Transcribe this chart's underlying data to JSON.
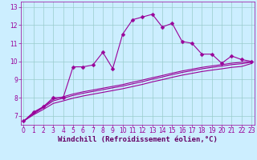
{
  "background_color": "#cceeff",
  "line_color": "#990099",
  "grid_color": "#99cccc",
  "xlabel": "Windchill (Refroidissement éolien,°C)",
  "xlabel_color": "#660066",
  "tick_color": "#990099",
  "x_ticks": [
    0,
    1,
    2,
    3,
    4,
    5,
    6,
    7,
    8,
    9,
    10,
    11,
    12,
    13,
    14,
    15,
    16,
    17,
    18,
    19,
    20,
    21,
    22,
    23
  ],
  "y_ticks": [
    7,
    8,
    9,
    10,
    11,
    12,
    13
  ],
  "ylim": [
    6.5,
    13.3
  ],
  "xlim": [
    -0.3,
    23.3
  ],
  "series1_x": [
    0,
    1,
    2,
    3,
    4,
    5,
    6,
    7,
    8,
    9,
    10,
    11,
    12,
    13,
    14,
    15,
    16,
    17,
    18,
    19,
    20,
    21,
    22,
    23
  ],
  "series1_y": [
    6.7,
    7.2,
    7.5,
    8.0,
    8.0,
    9.7,
    9.7,
    9.8,
    10.5,
    9.6,
    11.5,
    12.3,
    12.45,
    12.6,
    11.9,
    12.1,
    11.1,
    11.0,
    10.4,
    10.4,
    9.9,
    10.3,
    10.1,
    10.0
  ],
  "series2_x": [
    0,
    1,
    2,
    3,
    4,
    5,
    6,
    7,
    8,
    9,
    10,
    11,
    12,
    13,
    14,
    15,
    16,
    17,
    18,
    19,
    20,
    21,
    22,
    23
  ],
  "series2_y": [
    6.7,
    7.15,
    7.5,
    7.9,
    8.05,
    8.2,
    8.32,
    8.42,
    8.52,
    8.62,
    8.72,
    8.85,
    8.97,
    9.1,
    9.22,
    9.35,
    9.47,
    9.57,
    9.67,
    9.75,
    9.82,
    9.9,
    9.95,
    10.0
  ],
  "series3_x": [
    0,
    1,
    2,
    3,
    4,
    5,
    6,
    7,
    8,
    9,
    10,
    11,
    12,
    13,
    14,
    15,
    16,
    17,
    18,
    19,
    20,
    21,
    22,
    23
  ],
  "series3_y": [
    6.7,
    7.1,
    7.45,
    7.82,
    7.97,
    8.12,
    8.24,
    8.34,
    8.44,
    8.54,
    8.64,
    8.76,
    8.88,
    9.02,
    9.14,
    9.27,
    9.39,
    9.49,
    9.59,
    9.67,
    9.74,
    9.82,
    9.87,
    9.95
  ],
  "series4_x": [
    0,
    1,
    2,
    3,
    4,
    5,
    6,
    7,
    8,
    9,
    10,
    11,
    12,
    13,
    14,
    15,
    16,
    17,
    18,
    19,
    20,
    21,
    22,
    23
  ],
  "series4_y": [
    6.7,
    7.05,
    7.35,
    7.68,
    7.82,
    7.97,
    8.09,
    8.19,
    8.29,
    8.39,
    8.49,
    8.61,
    8.73,
    8.87,
    8.99,
    9.12,
    9.24,
    9.34,
    9.44,
    9.52,
    9.59,
    9.67,
    9.72,
    9.88
  ],
  "marker_size": 2.5,
  "line_width": 0.8,
  "font_size_ticks": 5.5,
  "font_size_xlabel": 6.5
}
